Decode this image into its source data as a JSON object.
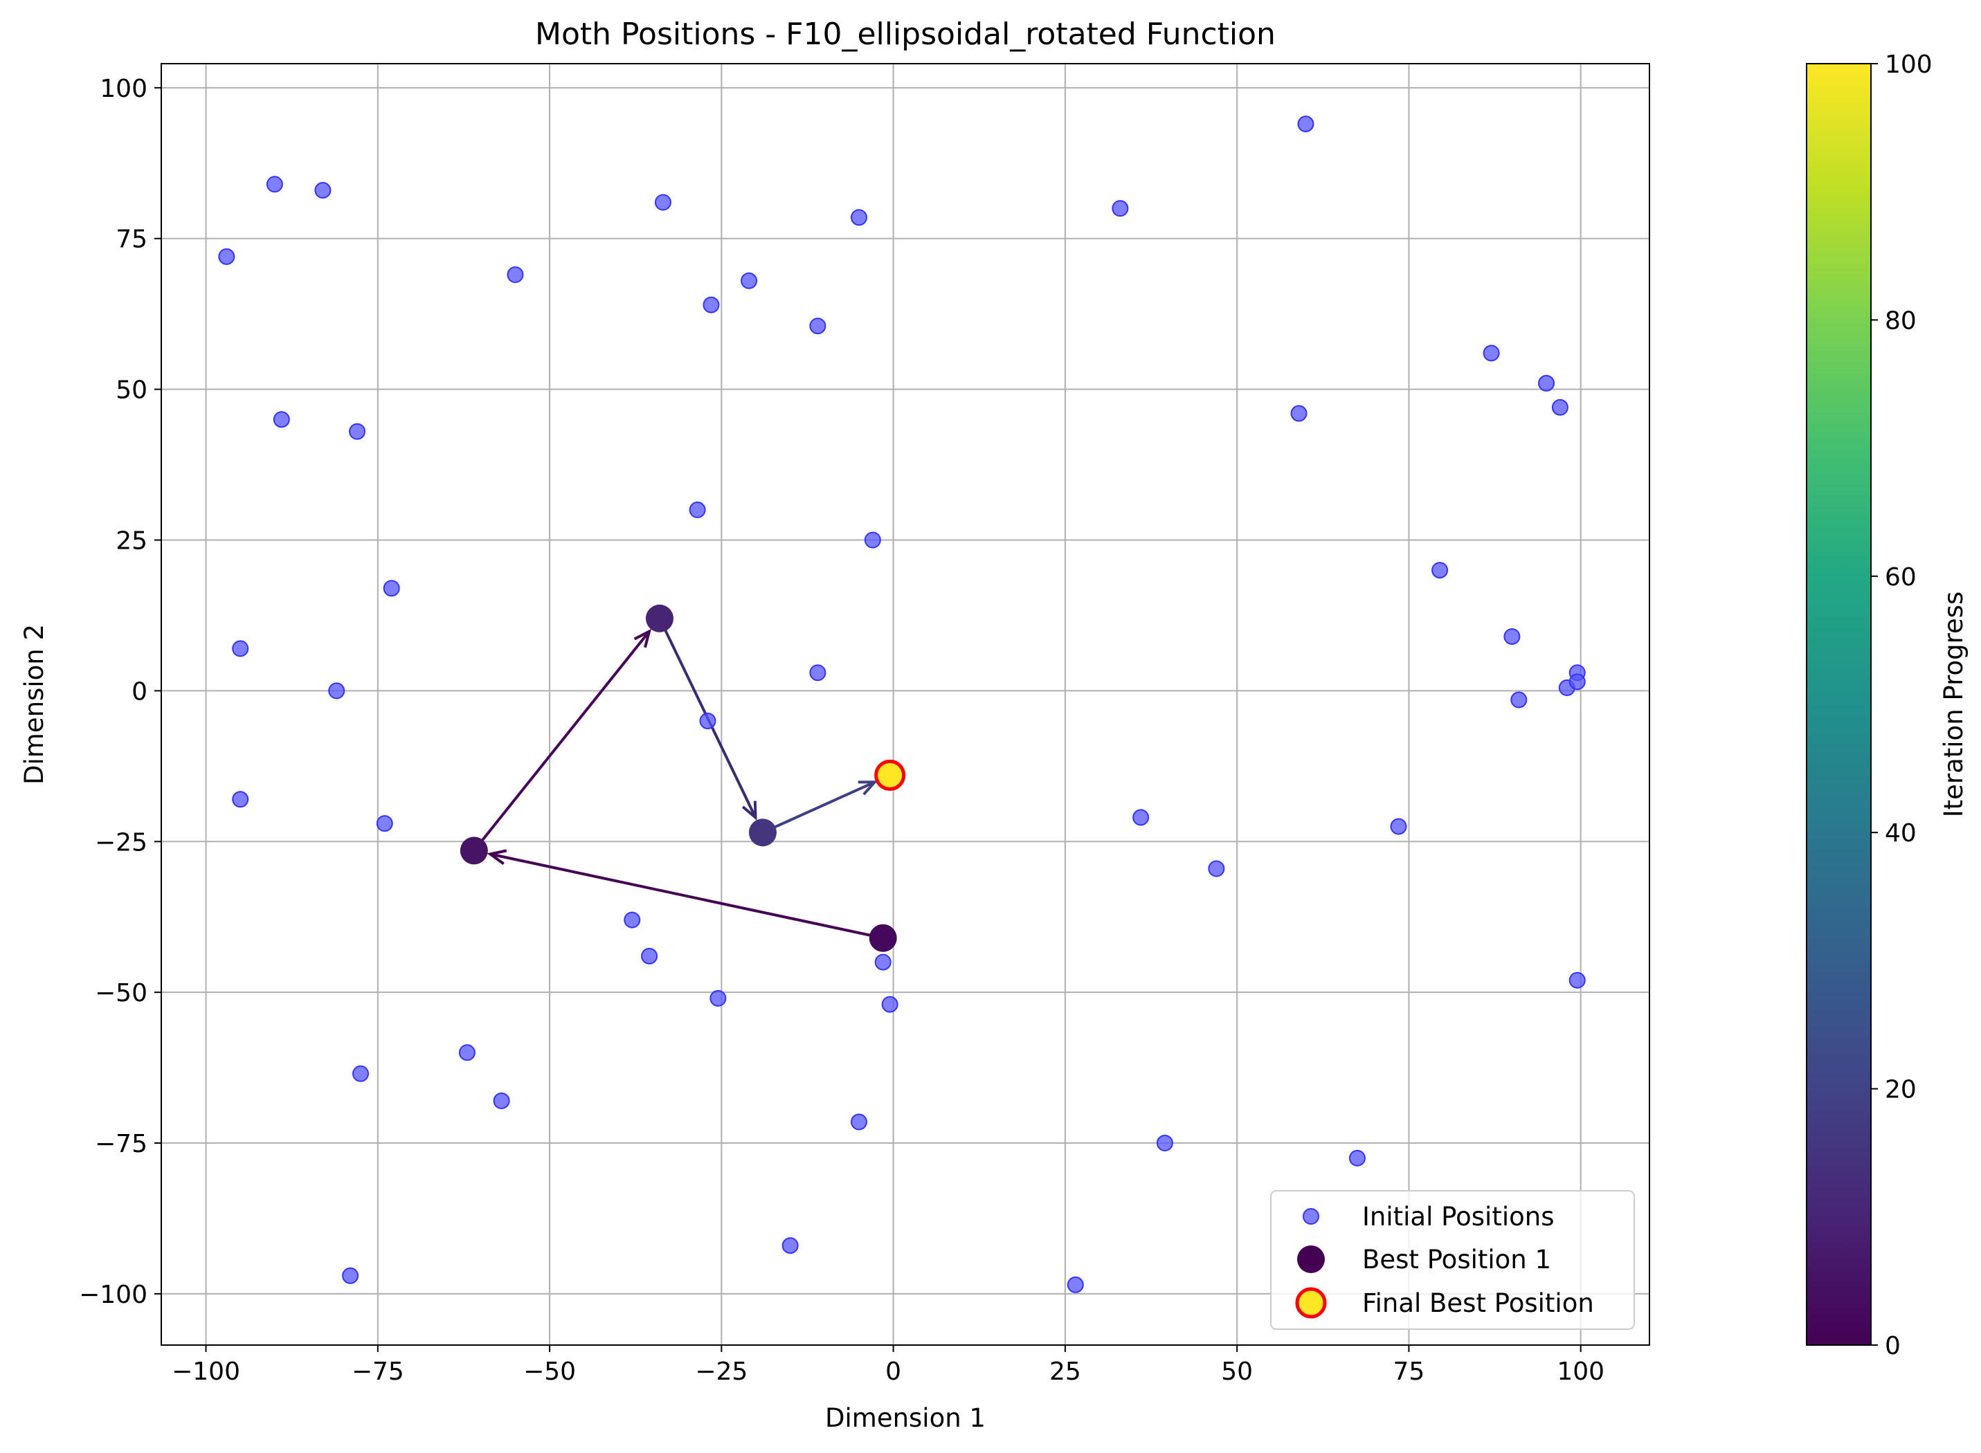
{
  "chart_data": {
    "type": "scatter",
    "title": "Moth Positions - F10_ellipsoidal_rotated Function",
    "xlabel": "Dimension 1",
    "ylabel": "Dimension 2",
    "xlim": [
      -106.5,
      110
    ],
    "ylim": [
      -108.5,
      104
    ],
    "x_ticks": [
      -100,
      -75,
      -50,
      -25,
      0,
      25,
      50,
      75,
      100
    ],
    "x_tick_labels": [
      "−100",
      "−75",
      "−50",
      "−25",
      "0",
      "25",
      "50",
      "75",
      "100"
    ],
    "y_ticks": [
      -100,
      -75,
      -50,
      -25,
      0,
      25,
      50,
      75,
      100
    ],
    "y_tick_labels": [
      "−100",
      "−75",
      "−50",
      "−25",
      "0",
      "25",
      "50",
      "75",
      "100"
    ],
    "grid": true,
    "legend_position": "lower-right",
    "colorbar": {
      "label": "Iteration Progress",
      "range": [
        0,
        100
      ],
      "ticks": [
        0,
        20,
        40,
        60,
        80,
        100
      ],
      "tick_labels": [
        "0",
        "20",
        "40",
        "60",
        "80",
        "100"
      ],
      "colormap": "viridis"
    },
    "series": [
      {
        "name": "Initial Positions",
        "color": "#5555ff",
        "points": [
          [
            -97,
            72
          ],
          [
            -90,
            84
          ],
          [
            -83,
            83
          ],
          [
            -89,
            45
          ],
          [
            -78,
            43
          ],
          [
            -73,
            17
          ],
          [
            -95,
            7
          ],
          [
            -81,
            0
          ],
          [
            -95,
            -18
          ],
          [
            -74,
            -22
          ],
          [
            -55,
            69
          ],
          [
            -33.5,
            81
          ],
          [
            -26.5,
            64
          ],
          [
            -21,
            68
          ],
          [
            -11,
            60.5
          ],
          [
            -5,
            78.5
          ],
          [
            -28.5,
            30
          ],
          [
            -3,
            25
          ],
          [
            -11,
            3
          ],
          [
            -27,
            -5
          ],
          [
            -38,
            -38
          ],
          [
            -35.5,
            -44
          ],
          [
            -25.5,
            -51
          ],
          [
            -62,
            -60
          ],
          [
            -57,
            -68
          ],
          [
            -77.5,
            -63.5
          ],
          [
            -79,
            -97
          ],
          [
            -15,
            -92
          ],
          [
            -5,
            -71.5
          ],
          [
            -1.5,
            -45
          ],
          [
            -0.5,
            -52
          ],
          [
            33,
            80
          ],
          [
            60,
            94
          ],
          [
            59,
            46
          ],
          [
            36,
            -21
          ],
          [
            47,
            -29.5
          ],
          [
            39.5,
            -75
          ],
          [
            26.5,
            -98.5
          ],
          [
            67.5,
            -77.5
          ],
          [
            73.5,
            -22.5
          ],
          [
            79.5,
            20
          ],
          [
            87,
            56
          ],
          [
            95,
            51
          ],
          [
            97,
            47
          ],
          [
            90,
            9
          ],
          [
            91,
            -1.5
          ],
          [
            98,
            0.5
          ],
          [
            99.5,
            3
          ],
          [
            99.5,
            1.5
          ],
          [
            99.5,
            -48
          ]
        ]
      },
      {
        "name": "Best Position 1",
        "color": "#440154",
        "points": [
          [
            -1.5,
            -41
          ],
          [
            -61,
            -26.5
          ],
          [
            -34,
            12
          ],
          [
            -19,
            -23.5
          ]
        ],
        "iterations": [
          2,
          5,
          10,
          15
        ]
      },
      {
        "name": "Final Best Position",
        "color": "#fde725",
        "edge_color": "#ff0000",
        "points": [
          [
            -0.5,
            -14
          ]
        ]
      }
    ],
    "arrow_colors": [
      "#440154",
      "#46075a",
      "#3b2c70",
      "#3e3f84"
    ],
    "arrows": [
      {
        "from": [
          -1.5,
          -41
        ],
        "to": [
          -61,
          -26.5
        ]
      },
      {
        "from": [
          -61,
          -26.5
        ],
        "to": [
          -34,
          12
        ]
      },
      {
        "from": [
          -34,
          12
        ],
        "to": [
          -19,
          -23.5
        ]
      },
      {
        "from": [
          -19,
          -23.5
        ],
        "to": [
          -0.5,
          -14
        ]
      }
    ]
  }
}
